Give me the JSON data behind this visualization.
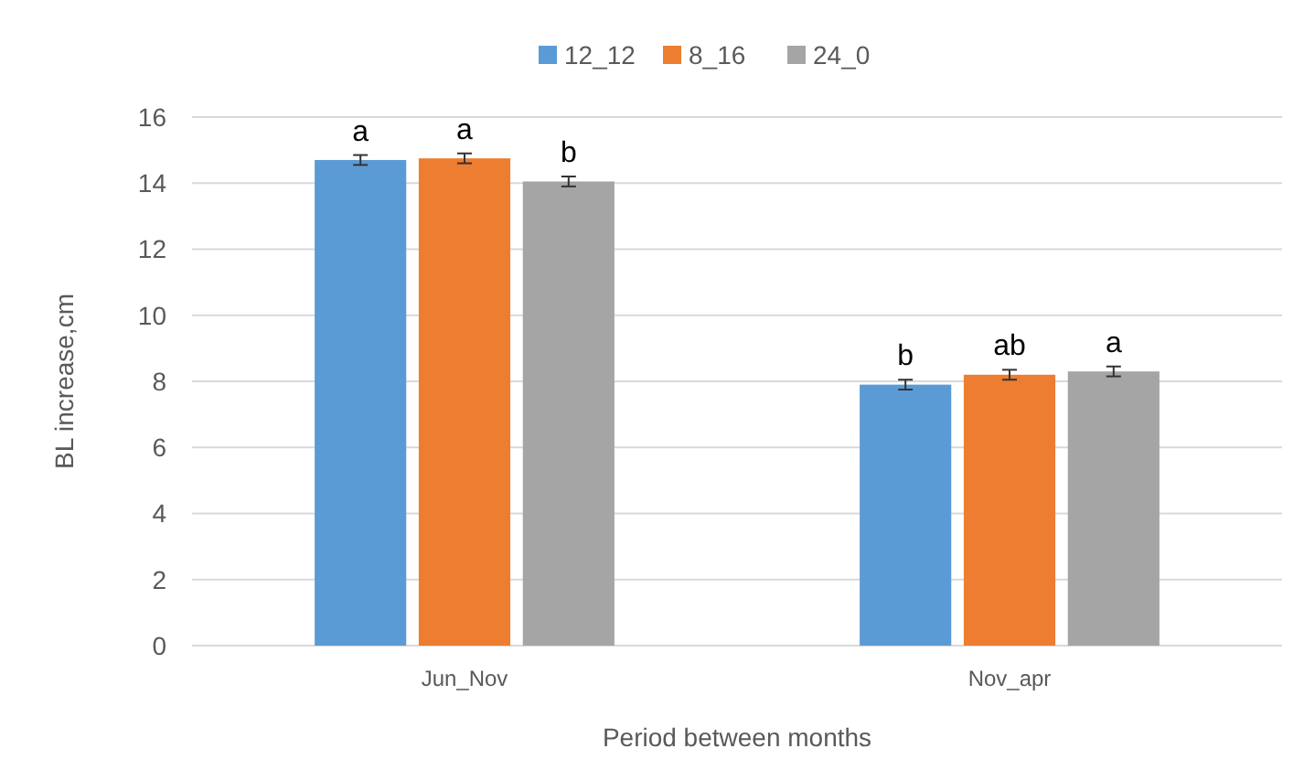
{
  "chart_data": {
    "type": "bar",
    "xlabel": "Period between months",
    "ylabel": "BL increase,cm",
    "categories": [
      "Jun_Nov",
      "Nov_apr"
    ],
    "series": [
      {
        "name": "12_12",
        "color": "#5b9bd5",
        "values": [
          14.7,
          7.9
        ],
        "errors": [
          0.15,
          0.15
        ],
        "value_labels": [
          "a",
          "b"
        ]
      },
      {
        "name": "8_16",
        "color": "#ed7d31",
        "values": [
          14.75,
          8.2
        ],
        "errors": [
          0.15,
          0.15
        ],
        "value_labels": [
          "a",
          "ab"
        ]
      },
      {
        "name": "24_0",
        "color": "#a5a5a5",
        "values": [
          14.05,
          8.3
        ],
        "errors": [
          0.15,
          0.15
        ],
        "value_labels": [
          "b",
          "a"
        ]
      }
    ],
    "ylim": [
      0,
      16
    ],
    "yticks": [
      0,
      2,
      4,
      6,
      8,
      10,
      12,
      14,
      16
    ],
    "grid": "y",
    "legend": "top"
  }
}
